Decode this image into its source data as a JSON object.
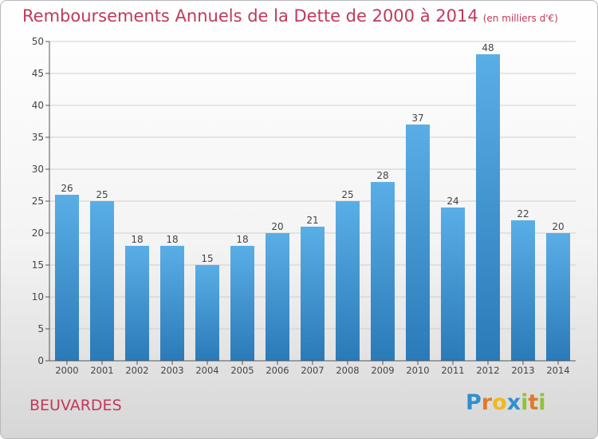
{
  "chart_data": {
    "type": "bar",
    "title": "Remboursements Annuels de la Dette de 2000 à 2014",
    "unit_note": "(en milliers d'€)",
    "categories": [
      "2000",
      "2001",
      "2002",
      "2003",
      "2004",
      "2005",
      "2006",
      "2007",
      "2008",
      "2009",
      "2010",
      "2011",
      "2012",
      "2013",
      "2014"
    ],
    "values": [
      26,
      25,
      18,
      18,
      15,
      18,
      20,
      21,
      25,
      28,
      37,
      24,
      48,
      22,
      20
    ],
    "ylim": [
      0,
      50
    ],
    "yticks": [
      0,
      5,
      10,
      15,
      20,
      25,
      30,
      35,
      40,
      45,
      50
    ],
    "xlabel": "",
    "ylabel": "",
    "grid": true,
    "colors": {
      "bar_top": "#5aaee6",
      "bar_bottom": "#2a7ab8",
      "title": "#c0395a"
    }
  },
  "footer": {
    "commune": "BEUVARDES"
  },
  "logo": {
    "letters": [
      "P",
      "r",
      "o",
      "x",
      "i",
      "t",
      "i"
    ],
    "colors": [
      "#2f8fcf",
      "#e07b2a",
      "#f2b81c",
      "#2f8fcf",
      "#8cc43a",
      "#e07b2a",
      "#8cc43a"
    ]
  }
}
